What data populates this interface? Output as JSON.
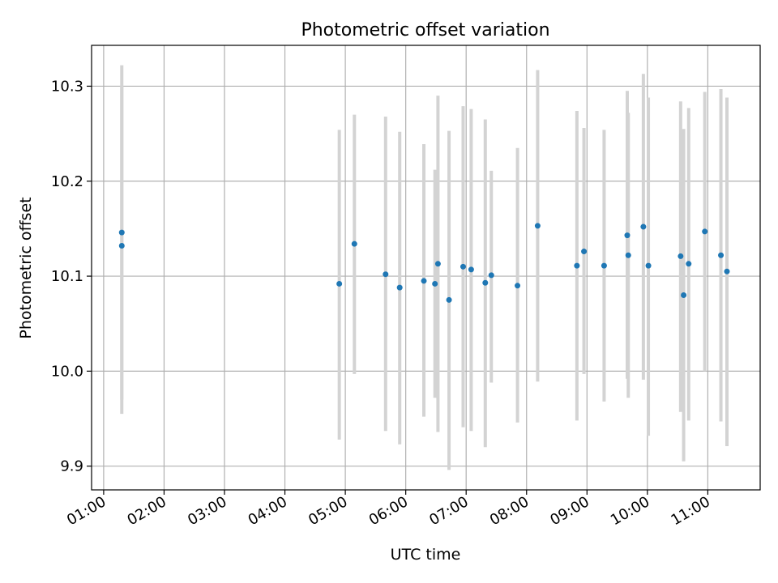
{
  "chart_data": {
    "type": "scatter",
    "title": "Photometric offset variation",
    "xlabel": "UTC time",
    "ylabel": "Photometric offset",
    "grid": true,
    "xlim": [
      "00:48",
      "11:52"
    ],
    "ylim": [
      9.875,
      10.343
    ],
    "x_ticks": [
      "01:00",
      "02:00",
      "03:00",
      "04:00",
      "05:00",
      "06:00",
      "07:00",
      "08:00",
      "09:00",
      "10:00",
      "11:00"
    ],
    "y_ticks": [
      9.9,
      10.0,
      10.1,
      10.2,
      10.3
    ],
    "y_tick_labels": [
      "9.9",
      "10.0",
      "10.1",
      "10.2",
      "10.3"
    ],
    "marker_color": "#1f77b4",
    "errorbar_color": "#d3d3d3",
    "points": [
      {
        "t": "01:18",
        "y": 10.146,
        "lo": 9.97,
        "hi": 10.322
      },
      {
        "t": "01:18",
        "y": 10.132,
        "lo": 9.955,
        "hi": 10.3
      },
      {
        "t": "04:54",
        "y": 10.092,
        "lo": 9.928,
        "hi": 10.254
      },
      {
        "t": "05:09",
        "y": 10.134,
        "lo": 9.997,
        "hi": 10.27
      },
      {
        "t": "05:40",
        "y": 10.102,
        "lo": 9.937,
        "hi": 10.268
      },
      {
        "t": "05:54",
        "y": 10.088,
        "lo": 9.923,
        "hi": 10.252
      },
      {
        "t": "06:18",
        "y": 10.095,
        "lo": 9.952,
        "hi": 10.239
      },
      {
        "t": "06:29",
        "y": 10.092,
        "lo": 9.972,
        "hi": 10.212
      },
      {
        "t": "06:32",
        "y": 10.113,
        "lo": 9.936,
        "hi": 10.29
      },
      {
        "t": "06:43",
        "y": 10.075,
        "lo": 9.896,
        "hi": 10.253
      },
      {
        "t": "06:57",
        "y": 10.11,
        "lo": 9.941,
        "hi": 10.279
      },
      {
        "t": "07:05",
        "y": 10.107,
        "lo": 9.937,
        "hi": 10.276
      },
      {
        "t": "07:19",
        "y": 10.093,
        "lo": 9.92,
        "hi": 10.265
      },
      {
        "t": "07:25",
        "y": 10.101,
        "lo": 9.988,
        "hi": 10.211
      },
      {
        "t": "07:51",
        "y": 10.09,
        "lo": 9.946,
        "hi": 10.235
      },
      {
        "t": "08:11",
        "y": 10.153,
        "lo": 9.989,
        "hi": 10.317
      },
      {
        "t": "08:50",
        "y": 10.111,
        "lo": 9.948,
        "hi": 10.274
      },
      {
        "t": "08:57",
        "y": 10.126,
        "lo": 9.997,
        "hi": 10.256
      },
      {
        "t": "09:17",
        "y": 10.111,
        "lo": 9.968,
        "hi": 10.254
      },
      {
        "t": "09:40",
        "y": 10.143,
        "lo": 9.992,
        "hi": 10.295
      },
      {
        "t": "09:41",
        "y": 10.122,
        "lo": 9.972,
        "hi": 10.272
      },
      {
        "t": "09:56",
        "y": 10.152,
        "lo": 9.991,
        "hi": 10.313
      },
      {
        "t": "10:01",
        "y": 10.111,
        "lo": 9.932,
        "hi": 10.288
      },
      {
        "t": "10:33",
        "y": 10.121,
        "lo": 9.957,
        "hi": 10.284
      },
      {
        "t": "10:36",
        "y": 10.08,
        "lo": 9.905,
        "hi": 10.255
      },
      {
        "t": "10:41",
        "y": 10.113,
        "lo": 9.948,
        "hi": 10.277
      },
      {
        "t": "10:57",
        "y": 10.147,
        "lo": 10.0,
        "hi": 10.294
      },
      {
        "t": "11:13",
        "y": 10.122,
        "lo": 9.947,
        "hi": 10.297
      },
      {
        "t": "11:19",
        "y": 10.105,
        "lo": 9.921,
        "hi": 10.288
      }
    ]
  }
}
